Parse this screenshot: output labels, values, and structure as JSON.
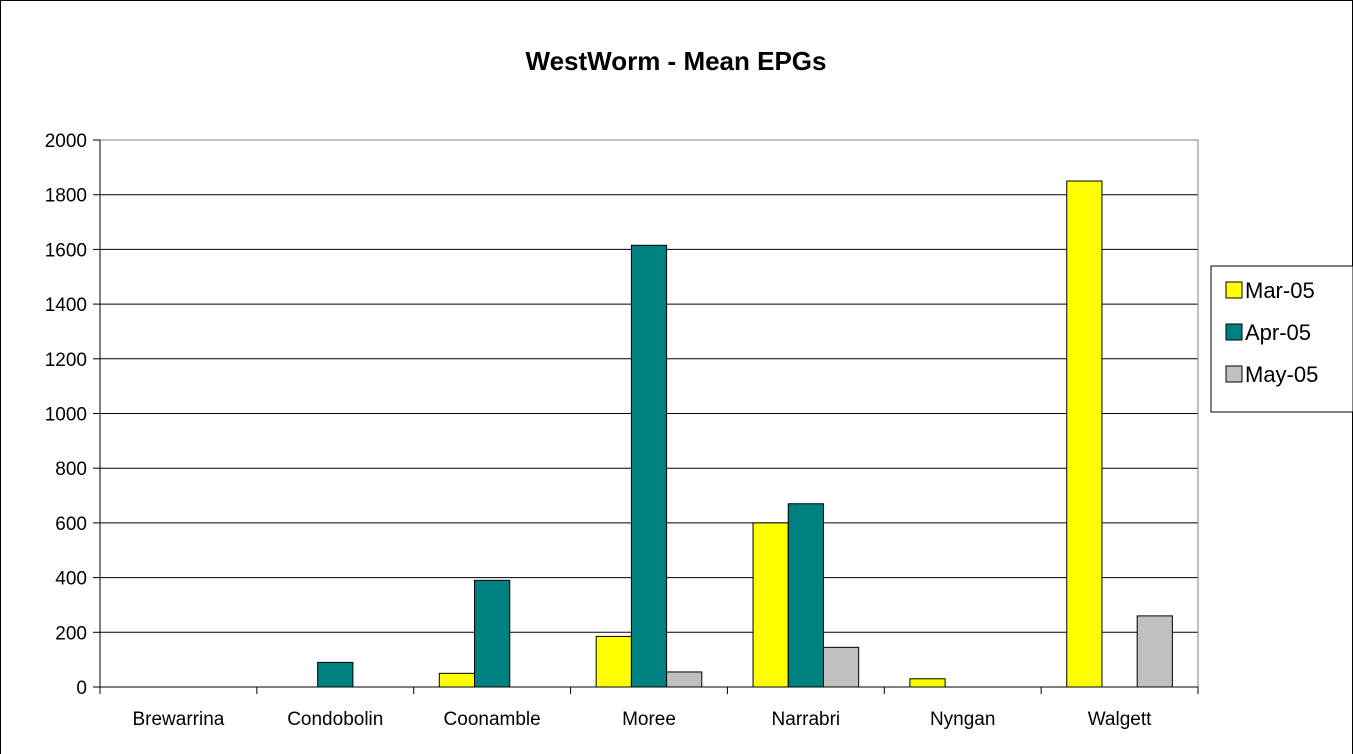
{
  "chart_data": {
    "type": "bar",
    "title": "WestWorm - Mean EPGs",
    "xlabel": "",
    "ylabel": "",
    "categories": [
      "Brewarrina",
      "Condobolin",
      "Coonamble",
      "Moree",
      "Narrabri",
      "Nyngan",
      "Walgett"
    ],
    "series": [
      {
        "name": "Mar-05",
        "color": "#FFFF00",
        "values": [
          0,
          0,
          50,
          185,
          600,
          30,
          1850
        ]
      },
      {
        "name": "Apr-05",
        "color": "#008080",
        "values": [
          0,
          90,
          390,
          1615,
          670,
          0,
          0
        ]
      },
      {
        "name": "May-05",
        "color": "#C0C0C0",
        "values": [
          0,
          0,
          0,
          55,
          145,
          0,
          260
        ]
      }
    ],
    "ylim": [
      0,
      2000
    ],
    "yticks": [
      0,
      200,
      400,
      600,
      800,
      1000,
      1200,
      1400,
      1600,
      1800,
      2000
    ],
    "grid": true,
    "legend": "right"
  }
}
